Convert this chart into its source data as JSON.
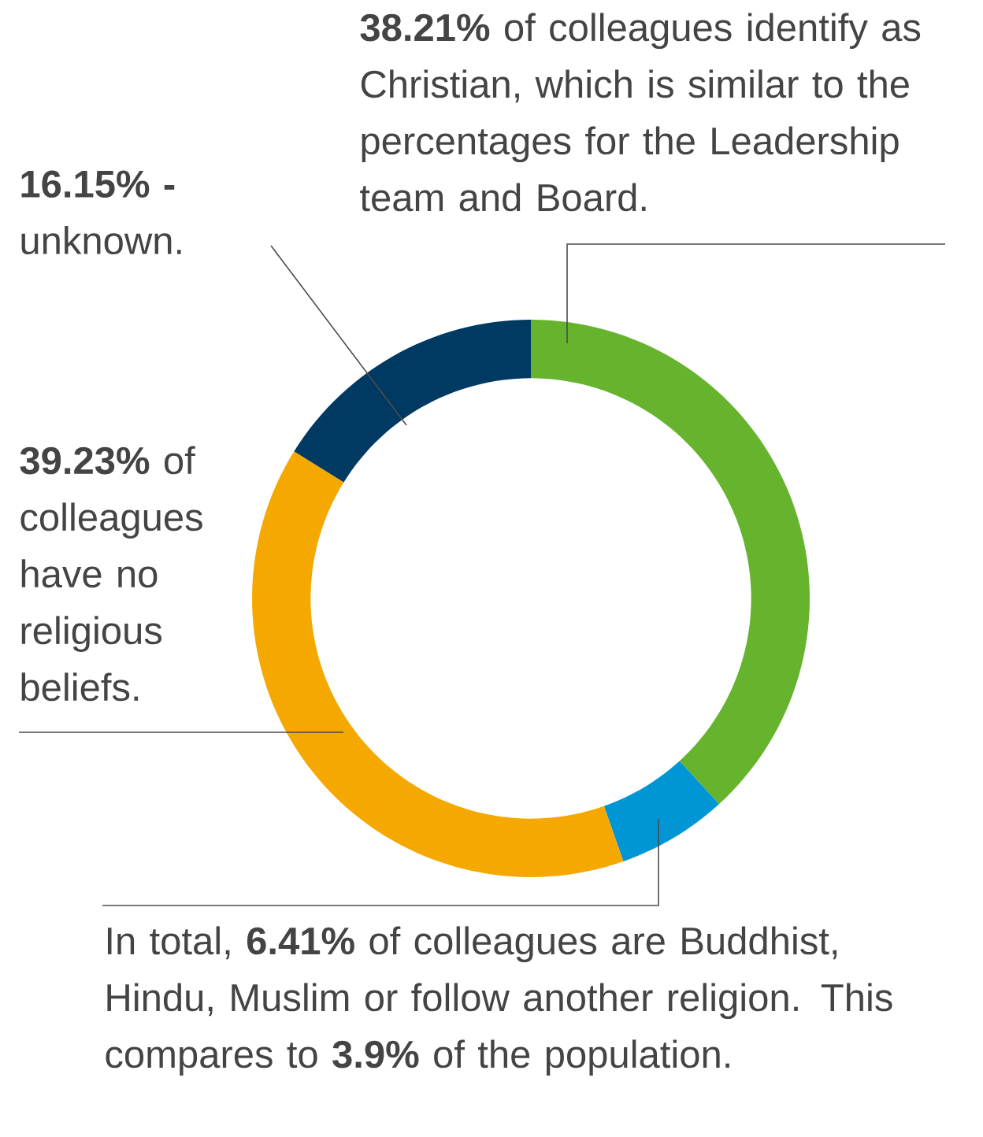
{
  "chart_data": {
    "type": "donut",
    "categories": [
      null,
      null,
      null,
      null
    ],
    "values": [
      38.21,
      6.41,
      39.23,
      16.15
    ],
    "colors": [
      "#66b32e",
      "#0096d6",
      "#f5a800",
      "#003a63"
    ],
    "annotations": [
      "**38.21%** of colleagues identify as Christian, which is similar to the percentages for the Leadership team and Board.",
      "**16.15% -** unknown.",
      "**39.23%** of colleagues have no religious beliefs.",
      "In total, **6.41%** of colleagues are Buddhist, Hindu, Muslim or follow another religion. This compares to **3.9%** of the population."
    ]
  }
}
